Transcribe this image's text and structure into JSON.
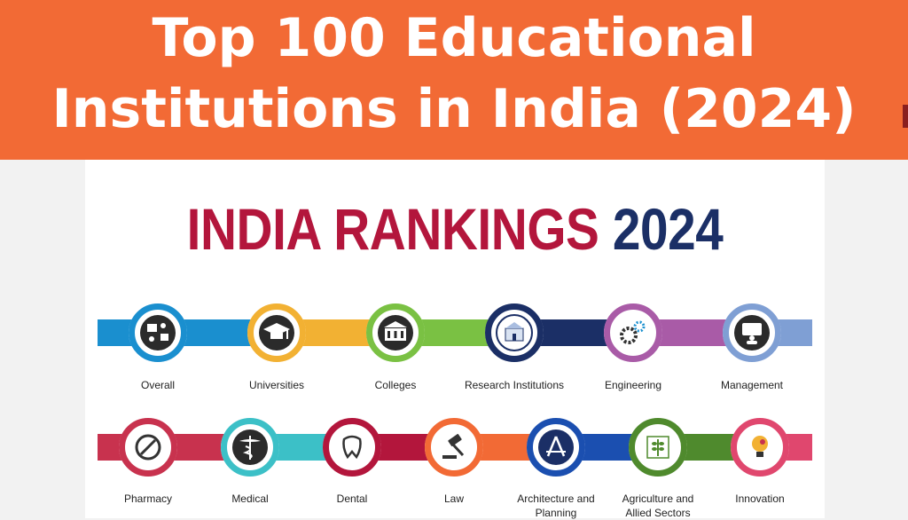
{
  "banner": {
    "line1": "Top 100 Educational",
    "line2": "Institutions in India (2024)"
  },
  "heading": {
    "red": "INDIA RANKINGS",
    "blue": "2024"
  },
  "colors": {
    "banner": "#f26a35",
    "heading_red": "#b3163c",
    "heading_blue": "#1b2f66"
  },
  "row1": [
    {
      "label": "Overall",
      "color": "#1a8fcf",
      "icon": "overall-icon"
    },
    {
      "label": "Universities",
      "color": "#f2b133",
      "icon": "graduation-cap-icon"
    },
    {
      "label": "Colleges",
      "color": "#7ac143",
      "icon": "college-building-icon"
    },
    {
      "label": "Research Institutions",
      "color": "#1b2f66",
      "icon": "research-building-icon"
    },
    {
      "label": "Engineering",
      "color": "#a95ba7",
      "icon": "gears-icon"
    },
    {
      "label": "Management",
      "color": "#7f9fd4",
      "icon": "presentation-icon"
    }
  ],
  "row2": [
    {
      "label": "Pharmacy",
      "color": "#c8324e",
      "icon": "pill-icon"
    },
    {
      "label": "Medical",
      "color": "#3cc0c7",
      "icon": "caduceus-icon"
    },
    {
      "label": "Dental",
      "color": "#b3163c",
      "icon": "tooth-icon"
    },
    {
      "label": "Law",
      "color": "#f26a35",
      "icon": "gavel-icon"
    },
    {
      "label": "Architecture and Planning",
      "color": "#1b4fb0",
      "icon": "compass-square-icon"
    },
    {
      "label": "Agriculture and Allied Sectors",
      "color": "#4f8a2d",
      "icon": "wheat-icon"
    },
    {
      "label": "Innovation",
      "color": "#e0476e",
      "icon": "lightbulb-icon"
    }
  ]
}
